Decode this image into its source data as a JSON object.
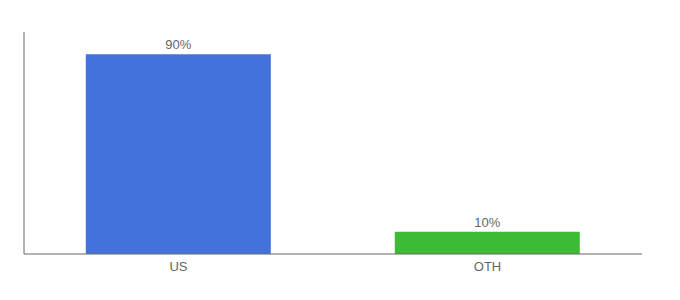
{
  "chart_data": {
    "type": "bar",
    "categories": [
      "US",
      "OTH"
    ],
    "values": [
      90,
      10
    ],
    "value_labels": [
      "90%",
      "10%"
    ],
    "colors": [
      "#4472db",
      "#3dbb35"
    ],
    "ylim": [
      0,
      100
    ],
    "data_labels": true,
    "tick_labels": "x"
  }
}
